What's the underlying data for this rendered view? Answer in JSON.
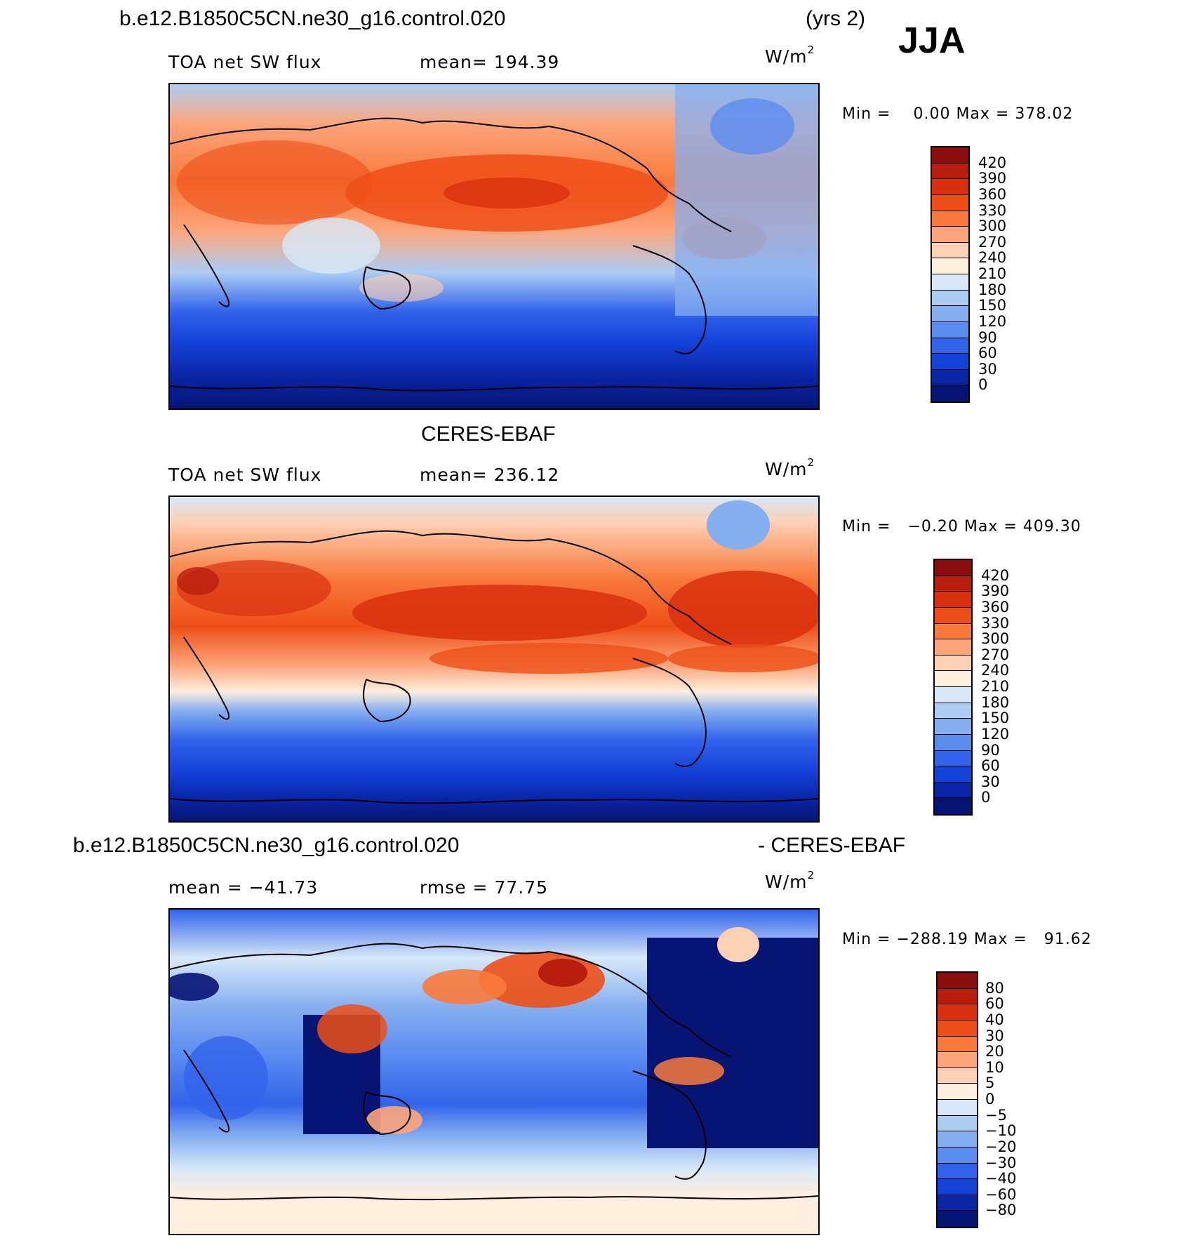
{
  "header": {
    "case": "b.e12.B1850C5CN.ne30_g16.control.020",
    "years": "(yrs 2)",
    "season": "JJA"
  },
  "panels": [
    {
      "id": "model",
      "variable": "TOA net SW flux",
      "stat_left": "mean=  194.39",
      "units_base": "W/m",
      "units_exp": "2",
      "min_label": "Min =",
      "min_value": "0.00",
      "max_label": "Max =",
      "max_value": "378.02",
      "colorbar": {
        "labels": [
          "420",
          "390",
          "360",
          "330",
          "300",
          "270",
          "240",
          "210",
          "180",
          "150",
          "120",
          "90",
          "60",
          "30",
          "0"
        ],
        "colors": [
          "#8b0e0e",
          "#b81e0e",
          "#d9300f",
          "#ee4f17",
          "#f97a3c",
          "#fca57b",
          "#fdcfb3",
          "#fdeedd",
          "#d7e8f8",
          "#aecdf3",
          "#86aff0",
          "#5b8cf0",
          "#3263ea",
          "#1340d6",
          "#0a25a6",
          "#061474"
        ]
      }
    },
    {
      "id": "obs",
      "title": "CERES-EBAF",
      "variable": "TOA net SW flux",
      "stat_left": "mean=  236.12",
      "units_base": "W/m",
      "units_exp": "2",
      "min_label": "Min =",
      "min_value": "−0.20",
      "max_label": "Max =",
      "max_value": "409.30",
      "colorbar": {
        "labels": [
          "420",
          "390",
          "360",
          "330",
          "300",
          "270",
          "240",
          "210",
          "180",
          "150",
          "120",
          "90",
          "60",
          "30",
          "0"
        ],
        "colors": [
          "#8b0e0e",
          "#b81e0e",
          "#d9300f",
          "#ee4f17",
          "#f97a3c",
          "#fca57b",
          "#fdcfb3",
          "#fdeedd",
          "#d7e8f8",
          "#aecdf3",
          "#86aff0",
          "#5b8cf0",
          "#3263ea",
          "#1340d6",
          "#0a25a6",
          "#061474"
        ]
      }
    },
    {
      "id": "diff",
      "title_left": "b.e12.B1850C5CN.ne30_g16.control.020",
      "title_right": "- CERES-EBAF",
      "stat_left": "mean =  −41.73",
      "stat_right": "rmse =   77.75",
      "units_base": "W/m",
      "units_exp": "2",
      "min_label": "Min =",
      "min_value": "−288.19",
      "max_label": "Max =",
      "max_value": "91.62",
      "colorbar": {
        "labels": [
          "80",
          "60",
          "40",
          "30",
          "20",
          "10",
          "5",
          "0",
          "−5",
          "−10",
          "−20",
          "−30",
          "−40",
          "−60",
          "−80"
        ],
        "colors": [
          "#8b0e0e",
          "#b81e0e",
          "#d9300f",
          "#ee4f17",
          "#f97a3c",
          "#fca57b",
          "#fdcfb3",
          "#fdeedd",
          "#d7e8f8",
          "#aecdf3",
          "#86aff0",
          "#5b8cf0",
          "#3263ea",
          "#1340d6",
          "#0a25a6",
          "#061474"
        ]
      }
    }
  ]
}
